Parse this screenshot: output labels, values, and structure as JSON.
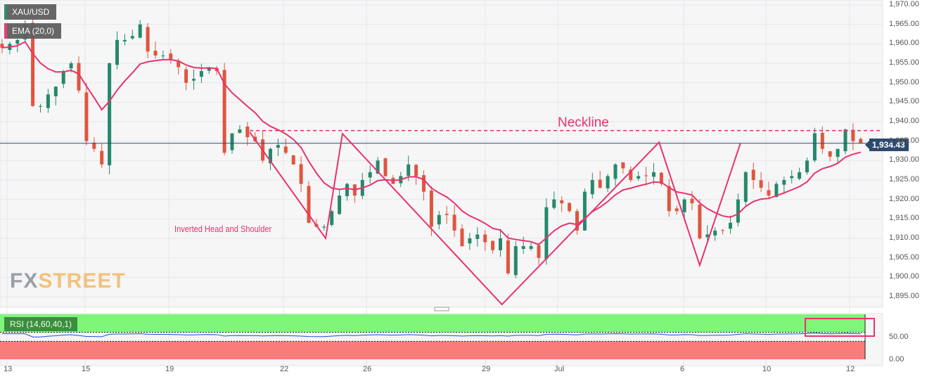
{
  "symbol": "XAU/USD",
  "indicator": "EMA (20,0)",
  "rsi_label": "RSI (14,60,40,1)",
  "current_price": "1,934.43",
  "logo": {
    "fx": "FX",
    "street": "STREET"
  },
  "colors": {
    "up": "#26886c",
    "down": "#e0553f",
    "ema": "#e8336f",
    "pattern": "#e8336f",
    "rsi_line": "#1f4fe0",
    "rsi_upper": "#7ff57a",
    "rsi_lower": "#fa7c7a",
    "price_line": "#2e4a6e"
  },
  "chart_data": {
    "type": "candlestick",
    "title": "",
    "y_ticks": [
      "1,970.00",
      "1,965.00",
      "1,960.00",
      "1,955.00",
      "1,950.00",
      "1,945.00",
      "1,940.00",
      "1,935.00",
      "1,930.00",
      "1,925.00",
      "1,920.00",
      "1,915.00",
      "1,910.00",
      "1,905.00",
      "1,900.00",
      "1,895.00"
    ],
    "ylim": [
      1893,
      1971
    ],
    "x_ticks": [
      "13",
      "15",
      "19",
      "22",
      "26",
      "29",
      "Jul",
      "6",
      "10",
      "12"
    ],
    "closes": [
      1959,
      1960,
      1961,
      1965,
      1944,
      1944,
      1947,
      1949,
      1953,
      1955,
      1948,
      1935,
      1933,
      1929,
      1955,
      1961,
      1961,
      1962,
      1965,
      1958,
      1957,
      1957,
      1956,
      1954,
      1950,
      1951,
      1953,
      1954,
      1953,
      1932,
      1937,
      1938,
      1936,
      1935,
      1930,
      1933,
      1934,
      1932,
      1929,
      1924,
      1914,
      1913,
      1913,
      1917,
      1921,
      1924,
      1921,
      1925,
      1927,
      1930,
      1926,
      1924,
      1926,
      1929,
      1926,
      1922,
      1913,
      1916,
      1916,
      1912,
      1908,
      1910,
      1911,
      1909,
      1907,
      1910,
      1901,
      1908,
      1908,
      1908,
      1905,
      1918,
      1920,
      1919,
      1917,
      1912,
      1922,
      1925,
      1923,
      1926,
      1929,
      1928,
      1925,
      1926,
      1926,
      1927,
      1924,
      1917,
      1917,
      1920,
      1919,
      1910,
      1911,
      1912,
      1912,
      1914,
      1920,
      1927,
      1925,
      1923,
      1921,
      1924,
      1925,
      1926,
      1927,
      1930,
      1937,
      1933,
      1931,
      1933,
      1938,
      1935,
      1934.43
    ],
    "neckline": {
      "label": "Neckline",
      "price": 1937.7
    },
    "pattern": {
      "label": "Inverted Head and Shoulder",
      "points": [
        [
          32.3,
          1937.3
        ],
        [
          42.2,
          1910
        ],
        [
          44.4,
          1936.9
        ],
        [
          65.2,
          1893
        ],
        [
          85.7,
          1934.7
        ],
        [
          91,
          1903.1
        ],
        [
          96.3,
          1934.4
        ]
      ]
    },
    "rsi": {
      "ticks": [
        "50.00",
        "0.00"
      ],
      "upper": 60,
      "lower": 40
    }
  }
}
